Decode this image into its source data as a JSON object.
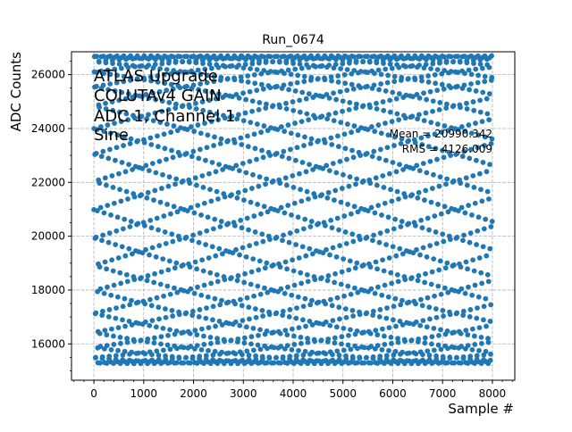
{
  "chart_data": {
    "type": "scatter",
    "title": "Run_0674",
    "xlabel": "Sample #",
    "ylabel": "ADC Counts",
    "xlim": [
      -450,
      8450
    ],
    "ylim": [
      14650,
      26850
    ],
    "x_ticks": [
      0,
      1000,
      2000,
      3000,
      4000,
      5000,
      6000,
      7000,
      8000
    ],
    "y_ticks": [
      16000,
      18000,
      20000,
      22000,
      24000,
      26000
    ],
    "grid": true,
    "grid_style": "dashed",
    "series": [
      {
        "type": "sine",
        "marker": "circle",
        "color": "#1f77b4",
        "n_samples": 8000,
        "x_min": 0,
        "x_max": 7999,
        "y_min": 15270,
        "y_max": 26700,
        "period_samples": 45.3
      }
    ],
    "annotations": {
      "top_left": [
        "ATLAS Upgrade",
        "COLUTAv4 GAIN",
        "ADC 1, Channel 1",
        "Sine"
      ],
      "mean": "Mean = 20990.342",
      "rms": "RMS = 4126.009"
    }
  }
}
